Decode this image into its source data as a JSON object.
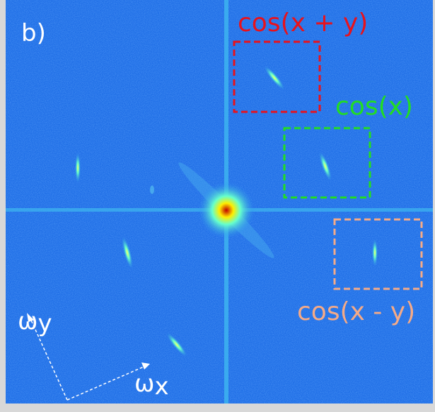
{
  "panel_label": "b)",
  "boxes": [
    {
      "label": "cos(x + y)",
      "color": "#e8121c"
    },
    {
      "label": "cos(x)",
      "color": "#22dd22"
    },
    {
      "label": "cos(x - y)",
      "color": "#f4aa88"
    }
  ],
  "axes": {
    "y": {
      "symbol": "ω",
      "subscript": "y"
    },
    "x": {
      "symbol": "ω",
      "subscript": "x"
    }
  }
}
